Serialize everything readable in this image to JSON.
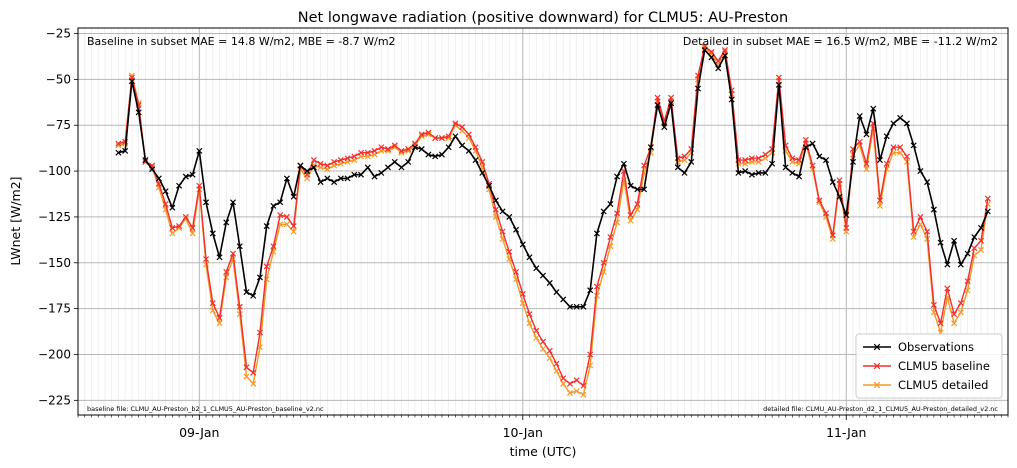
{
  "chart_data": {
    "type": "line",
    "title": "Net longwave radiation (positive downward) for CLMU5: AU-Preston",
    "xlabel": "time (UTC)",
    "ylabel": "LWnet [W/m2]",
    "ylim": [
      -233,
      -22
    ],
    "y_ticks": [
      -225,
      -200,
      -175,
      -150,
      -125,
      -100,
      -75,
      -50,
      -25
    ],
    "x_ticks": [
      {
        "x": 0,
        "label": "09-Jan"
      },
      {
        "x": 48,
        "label": "10-Jan"
      },
      {
        "x": 96,
        "label": "11-Jan"
      }
    ],
    "xlim": [
      -18,
      120
    ],
    "grid": true,
    "legend_position": "lower-right",
    "annotations": {
      "left": "Baseline in subset MAE = 14.8 W/m2, MBE = -8.7 W/m2",
      "right": "Detailed in subset MAE = 16.5 W/m2, MBE = -11.2 W/m2",
      "baseline_file": "baseline file: CLMU_AU-Preston_b2_1_CLMU5_AU-Preston_baseline_v2.nc",
      "detailed_file": "detailed file: CLMU_AU-Preston_d2_1_CLMU5_AU-Preston_detailed_v2.nc"
    },
    "x": [
      -12,
      -11,
      -10,
      -9,
      -8,
      -7,
      -6,
      -5,
      -4,
      -3,
      -2,
      -1,
      0,
      1,
      2,
      3,
      4,
      5,
      6,
      7,
      8,
      9,
      10,
      11,
      12,
      13,
      14,
      15,
      16,
      17,
      18,
      19,
      20,
      21,
      22,
      23,
      24,
      25,
      26,
      27,
      28,
      29,
      30,
      31,
      32,
      33,
      34,
      35,
      36,
      37,
      38,
      39,
      40,
      41,
      42,
      43,
      44,
      45,
      46,
      47,
      48,
      49,
      50,
      51,
      52,
      53,
      54,
      55,
      56,
      57,
      58,
      59,
      60,
      61,
      62,
      63,
      64,
      65,
      66,
      67,
      68,
      69,
      70,
      71,
      72,
      73,
      74,
      75,
      76,
      77,
      78,
      79,
      80,
      81,
      82,
      83,
      84,
      85,
      86,
      87,
      88,
      89,
      90,
      91,
      92,
      93,
      94,
      95,
      96,
      97,
      98,
      99,
      100,
      101,
      102,
      103,
      104,
      105,
      106,
      107,
      108,
      109,
      110,
      111,
      112,
      113,
      114,
      115,
      116,
      117
    ],
    "series": [
      {
        "name": "Observations",
        "color": "#000000",
        "values": [
          -90,
          -89,
          -51,
          -68,
          -94,
          -99,
          -104,
          -111,
          -120,
          -108,
          -103,
          -102,
          -89,
          -117,
          -134,
          -147,
          -128,
          -117,
          -141,
          -166,
          -168,
          -158,
          -130,
          -119,
          -117,
          -104,
          -114,
          -97,
          -100,
          -98,
          -106,
          -104,
          -106,
          -104,
          -104,
          -102,
          -102,
          -98,
          -103,
          -101,
          -98,
          -95,
          -98,
          -95,
          -87,
          -88,
          -91,
          -92,
          -91,
          -87,
          -81,
          -86,
          -89,
          -94,
          -101,
          -108,
          -116,
          -122,
          -125,
          -132,
          -140,
          -147,
          -153,
          -157,
          -161,
          -166,
          -170,
          -174,
          -174,
          -174,
          -165,
          -134,
          -122,
          -118,
          -103,
          -96,
          -108,
          -110,
          -110,
          -87,
          -64,
          -76,
          -63,
          -98,
          -101,
          -95,
          -55,
          -34,
          -38,
          -44,
          -37,
          -61,
          -101,
          -100,
          -102,
          -101,
          -101,
          -96,
          -53,
          -98,
          -101,
          -103,
          -87,
          -85,
          -92,
          -94,
          -106,
          -114,
          -124,
          -95,
          -70,
          -80,
          -66,
          -94,
          -81,
          -74,
          -71,
          -74,
          -86,
          -100,
          -106,
          -121,
          -139,
          -151,
          -138,
          -151,
          -145,
          -136,
          -131,
          -122
        ]
      },
      {
        "name": "CLMU5 baseline",
        "color": "#f03030",
        "values": [
          -85,
          -84,
          -49,
          -64,
          -95,
          -97,
          -107,
          -118,
          -131,
          -130,
          -125,
          -131,
          -108,
          -148,
          -172,
          -180,
          -155,
          -145,
          -174,
          -207,
          -210,
          -188,
          -152,
          -141,
          -124,
          -125,
          -130,
          -97,
          -102,
          -94,
          -96,
          -97,
          -95,
          -94,
          -93,
          -92,
          -90,
          -90,
          -89,
          -87,
          -88,
          -86,
          -89,
          -88,
          -85,
          -80,
          -79,
          -82,
          -82,
          -81,
          -74,
          -76,
          -80,
          -87,
          -95,
          -107,
          -121,
          -133,
          -144,
          -155,
          -167,
          -178,
          -187,
          -193,
          -198,
          -205,
          -213,
          -216,
          -214,
          -217,
          -200,
          -163,
          -150,
          -136,
          -123,
          -100,
          -124,
          -118,
          -97,
          -87,
          -60,
          -73,
          -60,
          -93,
          -92,
          -88,
          -48,
          -32,
          -35,
          -40,
          -34,
          -56,
          -94,
          -94,
          -93,
          -93,
          -91,
          -88,
          -49,
          -86,
          -93,
          -94,
          -83,
          -97,
          -116,
          -123,
          -135,
          -105,
          -131,
          -88,
          -84,
          -96,
          -74,
          -116,
          -96,
          -87,
          -87,
          -92,
          -133,
          -125,
          -133,
          -173,
          -183,
          -164,
          -178,
          -172,
          -160,
          -142,
          -138,
          -115
        ]
      },
      {
        "name": "CLMU5 detailed",
        "color": "#f59a28",
        "values": [
          -86,
          -85,
          -48,
          -63,
          -95,
          -98,
          -109,
          -121,
          -134,
          -131,
          -126,
          -134,
          -110,
          -151,
          -176,
          -183,
          -158,
          -148,
          -178,
          -212,
          -216,
          -196,
          -159,
          -144,
          -129,
          -129,
          -133,
          -99,
          -104,
          -97,
          -98,
          -99,
          -97,
          -96,
          -95,
          -94,
          -92,
          -92,
          -91,
          -89,
          -89,
          -87,
          -90,
          -89,
          -86,
          -81,
          -80,
          -82,
          -82,
          -82,
          -75,
          -78,
          -82,
          -89,
          -98,
          -110,
          -125,
          -137,
          -148,
          -159,
          -172,
          -183,
          -191,
          -197,
          -202,
          -209,
          -216,
          -221,
          -220,
          -222,
          -206,
          -168,
          -155,
          -141,
          -128,
          -105,
          -127,
          -121,
          -101,
          -90,
          -62,
          -74,
          -62,
          -95,
          -94,
          -90,
          -50,
          -33,
          -36,
          -42,
          -35,
          -58,
          -96,
          -96,
          -95,
          -95,
          -93,
          -90,
          -51,
          -89,
          -95,
          -96,
          -85,
          -99,
          -117,
          -125,
          -137,
          -107,
          -133,
          -91,
          -86,
          -99,
          -77,
          -119,
          -99,
          -90,
          -90,
          -95,
          -136,
          -129,
          -137,
          -177,
          -188,
          -169,
          -183,
          -177,
          -165,
          -146,
          -143,
          -118
        ]
      }
    ]
  }
}
